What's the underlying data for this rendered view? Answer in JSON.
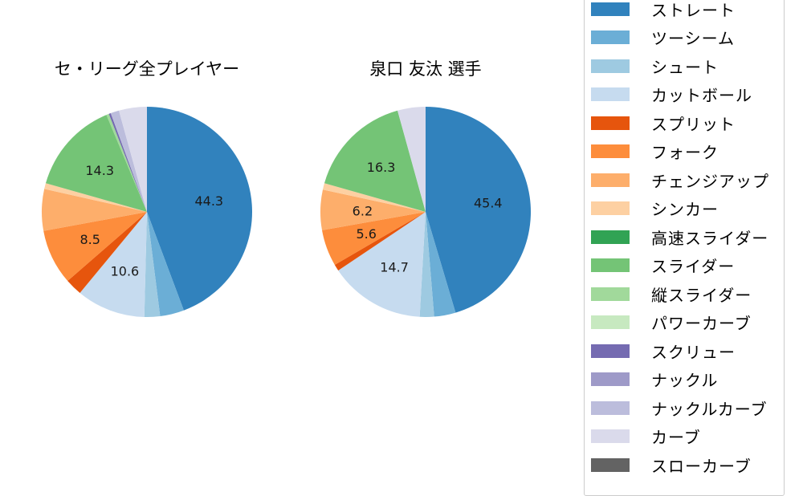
{
  "chart_data": [
    {
      "type": "pie",
      "title": "セ・リーグ全プレイヤー",
      "start_angle": 90,
      "direction": "clockwise",
      "slices": [
        {
          "label": "ストレート",
          "value": 44.3,
          "color": "#3182bd",
          "shown_label": "44.3"
        },
        {
          "label": "ツーシーム",
          "value": 3.7,
          "color": "#6baed6",
          "shown_label": ""
        },
        {
          "label": "シュート",
          "value": 2.4,
          "color": "#9ecae1",
          "shown_label": ""
        },
        {
          "label": "カットボール",
          "value": 10.6,
          "color": "#c6dbef",
          "shown_label": "10.6"
        },
        {
          "label": "スプリット",
          "value": 2.6,
          "color": "#e6550d",
          "shown_label": ""
        },
        {
          "label": "フォーク",
          "value": 8.5,
          "color": "#fd8d3c",
          "shown_label": "8.5"
        },
        {
          "label": "チェンジアップ",
          "value": 6.4,
          "color": "#fdae6b",
          "shown_label": ""
        },
        {
          "label": "シンカー",
          "value": 0.9,
          "color": "#fdd0a2",
          "shown_label": ""
        },
        {
          "label": "スライダー",
          "value": 14.3,
          "color": "#74c476",
          "shown_label": "14.3"
        },
        {
          "label": "縦スライダー",
          "value": 0.4,
          "color": "#a1d99b",
          "shown_label": ""
        },
        {
          "label": "スクリュー",
          "value": 0.3,
          "color": "#756bb1",
          "shown_label": ""
        },
        {
          "label": "ナックルカーブ",
          "value": 1.3,
          "color": "#bcbddc",
          "shown_label": ""
        },
        {
          "label": "カーブ",
          "value": 4.3,
          "color": "#dadaeb",
          "shown_label": ""
        }
      ]
    },
    {
      "type": "pie",
      "title": "泉口 友汰  選手",
      "start_angle": 90,
      "direction": "clockwise",
      "slices": [
        {
          "label": "ストレート",
          "value": 45.4,
          "color": "#3182bd",
          "shown_label": "45.4"
        },
        {
          "label": "ツーシーム",
          "value": 3.3,
          "color": "#6baed6",
          "shown_label": ""
        },
        {
          "label": "シュート",
          "value": 2.2,
          "color": "#9ecae1",
          "shown_label": ""
        },
        {
          "label": "カットボール",
          "value": 14.7,
          "color": "#c6dbef",
          "shown_label": "14.7"
        },
        {
          "label": "スプリット",
          "value": 1.0,
          "color": "#e6550d",
          "shown_label": ""
        },
        {
          "label": "フォーク",
          "value": 5.6,
          "color": "#fd8d3c",
          "shown_label": "5.6"
        },
        {
          "label": "チェンジアップ",
          "value": 6.2,
          "color": "#fdae6b",
          "shown_label": "6.2"
        },
        {
          "label": "シンカー",
          "value": 1.0,
          "color": "#fdd0a2",
          "shown_label": ""
        },
        {
          "label": "スライダー",
          "value": 16.3,
          "color": "#74c476",
          "shown_label": "16.3"
        },
        {
          "label": "カーブ",
          "value": 4.3,
          "color": "#dadaeb",
          "shown_label": ""
        }
      ]
    }
  ],
  "legend": {
    "position": "right",
    "items": [
      {
        "label": "ストレート",
        "color": "#3182bd"
      },
      {
        "label": "ツーシーム",
        "color": "#6baed6"
      },
      {
        "label": "シュート",
        "color": "#9ecae1"
      },
      {
        "label": "カットボール",
        "color": "#c6dbef"
      },
      {
        "label": "スプリット",
        "color": "#e6550d"
      },
      {
        "label": "フォーク",
        "color": "#fd8d3c"
      },
      {
        "label": "チェンジアップ",
        "color": "#fdae6b"
      },
      {
        "label": "シンカー",
        "color": "#fdd0a2"
      },
      {
        "label": "高速スライダー",
        "color": "#31a354"
      },
      {
        "label": "スライダー",
        "color": "#74c476"
      },
      {
        "label": "縦スライダー",
        "color": "#a1d99b"
      },
      {
        "label": "パワーカーブ",
        "color": "#c7e9c0"
      },
      {
        "label": "スクリュー",
        "color": "#756bb1"
      },
      {
        "label": "ナックル",
        "color": "#9e9ac8"
      },
      {
        "label": "ナックルカーブ",
        "color": "#bcbddc"
      },
      {
        "label": "カーブ",
        "color": "#dadaeb"
      },
      {
        "label": "スローカーブ",
        "color": "#636363"
      }
    ]
  },
  "titles": {
    "left": "セ・リーグ全プレイヤー",
    "right": "泉口 友汰  選手"
  }
}
